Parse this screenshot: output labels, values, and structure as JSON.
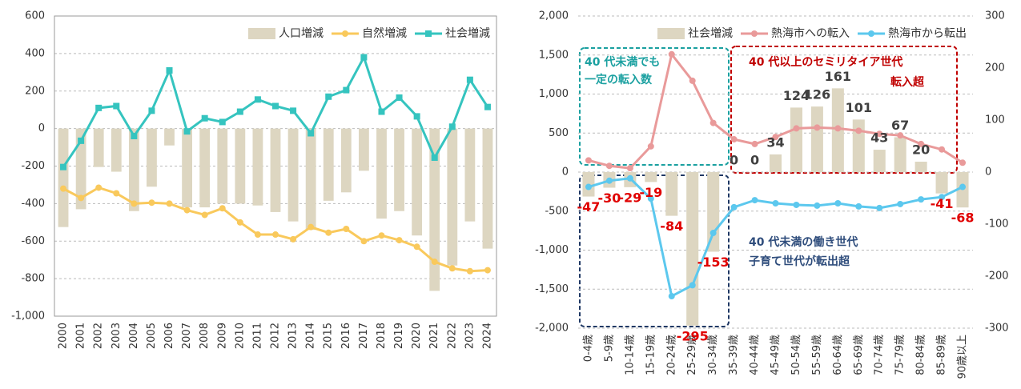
{
  "chart_data": [
    {
      "type": "combo",
      "frame": true,
      "grid": true,
      "legend": "top-right",
      "categories": [
        "2000",
        "2001",
        "2002",
        "2003",
        "2004",
        "2005",
        "2006",
        "2007",
        "2008",
        "2009",
        "2010",
        "2011",
        "2012",
        "2013",
        "2014",
        "2015",
        "2016",
        "2017",
        "2018",
        "2019",
        "2020",
        "2021",
        "2022",
        "2023",
        "2024"
      ],
      "ylim": [
        -1000,
        600
      ],
      "yticks": [
        {
          "value": -1000,
          "label": "-1,000"
        },
        -800,
        -600,
        -400,
        -200,
        0,
        200,
        400,
        600
      ],
      "series": [
        {
          "name": "人口増減",
          "type": "bar",
          "color": "#ddd6c1",
          "values": [
            -525,
            -430,
            -205,
            -230,
            -440,
            -310,
            -90,
            -420,
            -420,
            -400,
            -400,
            -410,
            -445,
            -495,
            -540,
            -385,
            -340,
            -225,
            -480,
            -440,
            -570,
            -865,
            -730,
            -495,
            -640
          ]
        },
        {
          "name": "自然増減",
          "type": "line",
          "marker": "circle",
          "color": "#f9c95c",
          "values": [
            -320,
            -370,
            -315,
            -345,
            -400,
            -395,
            -400,
            -435,
            -460,
            -425,
            -500,
            -565,
            -565,
            -590,
            -525,
            -555,
            -535,
            -600,
            -570,
            -595,
            -630,
            -710,
            -745,
            -760,
            -755
          ]
        },
        {
          "name": "社会増減",
          "type": "line",
          "marker": "square",
          "color": "#35c4bf",
          "values": [
            -205,
            -65,
            110,
            120,
            -40,
            95,
            310,
            -15,
            55,
            35,
            90,
            155,
            120,
            95,
            -25,
            170,
            205,
            380,
            90,
            165,
            65,
            -155,
            10,
            260,
            115
          ]
        }
      ]
    },
    {
      "type": "combo",
      "frame": false,
      "grid": true,
      "legend": "top-right",
      "categories": [
        "0-4歳",
        "5-9歳",
        "10-14歳",
        "15-19歳",
        "20-24歳",
        "25-29歳",
        "30-34歳",
        "35-39歳",
        "40-44歳",
        "45-49歳",
        "50-54歳",
        "55-59歳",
        "60-64歳",
        "65-69歳",
        "70-74歳",
        "75-79歳",
        "80-84歳",
        "85-89歳",
        "90歳以上"
      ],
      "ylim": [
        -2000,
        2000
      ],
      "yticks": [
        {
          "value": -2000,
          "label": "-2,000"
        },
        {
          "value": -1500,
          "label": "-1,500"
        },
        {
          "value": -1000,
          "label": "-1,000"
        },
        -500,
        0,
        500,
        {
          "value": 1000,
          "label": "1,000"
        },
        {
          "value": 1500,
          "label": "1,500"
        },
        {
          "value": 2000,
          "label": "2,000"
        }
      ],
      "y2lim": [
        -300,
        300
      ],
      "y2ticks": [
        -300,
        -200,
        -100,
        0,
        100,
        200,
        300
      ],
      "series": [
        {
          "name": "社会増減",
          "type": "bar",
          "axis": "y2",
          "data_labels": true,
          "color": "#ddd6c1",
          "values": [
            -47,
            -30,
            -29,
            -19,
            -84,
            -295,
            -153,
            0,
            0,
            34,
            124,
            126,
            161,
            101,
            43,
            67,
            20,
            -41,
            -68
          ]
        },
        {
          "name": "熱海市への転入",
          "type": "line",
          "marker": "circle",
          "color": "#e99a9a",
          "values": [
            150,
            80,
            50,
            330,
            1510,
            1170,
            630,
            420,
            360,
            450,
            560,
            570,
            560,
            530,
            490,
            470,
            360,
            290,
            120
          ]
        },
        {
          "name": "熱海市から転出",
          "type": "line",
          "marker": "circle",
          "color": "#5cc8ee",
          "values": [
            -190,
            -110,
            -80,
            -340,
            -1590,
            -1450,
            -780,
            -450,
            -360,
            -400,
            -420,
            -430,
            -400,
            -440,
            -460,
            -410,
            -350,
            -320,
            -190
          ]
        }
      ],
      "annotations": [
        {
          "text": [
            "40 代未満でも",
            "一定の転入数"
          ],
          "color": "#1aa0a0"
        },
        {
          "text": [
            "40 代以上のセミリタイア世代"
          ],
          "color": "#c00000"
        },
        {
          "text": [
            "転入超"
          ],
          "color": "#c00000"
        },
        {
          "text": [
            "40 代未満の働き世代"
          ],
          "color": "#2f4d7c"
        },
        {
          "text": [
            "子育て世代が転出超"
          ],
          "color": "#2f4d7c"
        }
      ]
    }
  ]
}
